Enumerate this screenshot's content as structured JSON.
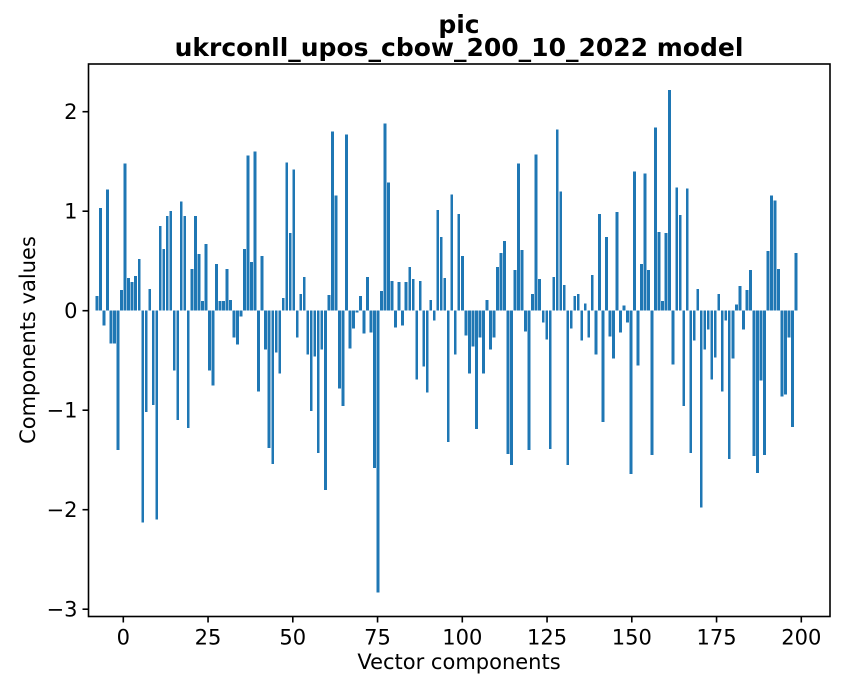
{
  "title": {
    "line1": "pic",
    "line2": "ukrconll_upos_cbow_200_10_2022 model"
  },
  "chart_data": {
    "type": "bar",
    "title": "pic\nukrconll_upos_cbow_200_10_2022 model",
    "xlabel": "Vector components",
    "ylabel": "Components values",
    "bar_color": "#1f77b4",
    "axis_color": "#000000",
    "background_color": "#ffffff",
    "xticks": [
      0,
      25,
      50,
      75,
      100,
      125,
      150,
      175,
      200
    ],
    "yticks": [
      2,
      1,
      0,
      -1,
      -2,
      -3
    ],
    "xlim": [
      -10,
      210
    ],
    "ylim": [
      -3.07,
      2.48
    ],
    "grid": false,
    "legend": null,
    "bar_width": 0.8,
    "x_start": 0,
    "n_components": 200,
    "values": [
      0.15,
      1.03,
      -0.15,
      1.22,
      -0.33,
      -0.33,
      -1.4,
      0.21,
      1.48,
      0.33,
      0.29,
      0.35,
      0.52,
      -2.13,
      -1.02,
      0.22,
      -0.95,
      -2.1,
      0.85,
      0.62,
      0.95,
      1.0,
      -0.6,
      -1.1,
      1.1,
      0.95,
      -1.18,
      0.42,
      0.95,
      0.57,
      0.1,
      0.67,
      -0.6,
      -0.75,
      0.47,
      0.1,
      0.1,
      0.42,
      0.11,
      -0.27,
      -0.34,
      -0.06,
      0.62,
      1.56,
      0.49,
      1.6,
      -0.81,
      0.55,
      -0.39,
      -1.38,
      -1.54,
      -0.42,
      -0.63,
      0.13,
      1.49,
      0.78,
      1.42,
      -0.27,
      0.17,
      0.34,
      -0.44,
      -1.01,
      -0.46,
      -1.43,
      -0.39,
      -1.8,
      0.16,
      1.8,
      1.16,
      -0.78,
      -0.96,
      1.77,
      -0.38,
      -0.18,
      -0.02,
      0.15,
      -0.23,
      0.34,
      -0.22,
      -1.58,
      -2.83,
      0.2,
      1.88,
      1.29,
      0.3,
      -0.17,
      0.29,
      -0.15,
      0.29,
      0.44,
      0.32,
      -0.69,
      0.3,
      -0.56,
      -0.82,
      0.11,
      -0.1,
      1.01,
      0.74,
      0.33,
      -1.32,
      1.17,
      -0.44,
      0.97,
      0.55,
      -0.25,
      -0.63,
      -0.36,
      -1.19,
      -0.27,
      -0.63,
      0.11,
      -0.39,
      -0.27,
      0.44,
      0.58,
      0.7,
      -1.44,
      -1.55,
      0.41,
      1.48,
      0.61,
      -0.21,
      -1.4,
      0.17,
      1.57,
      0.32,
      -0.12,
      -0.29,
      -1.39,
      0.34,
      1.82,
      1.2,
      0.26,
      -1.55,
      -0.18,
      0.15,
      0.17,
      -0.3,
      0.07,
      -0.27,
      0.36,
      -0.44,
      0.97,
      -1.12,
      0.74,
      -0.26,
      -0.48,
      0.99,
      -0.22,
      0.05,
      -0.12,
      -1.64,
      1.4,
      -0.55,
      0.47,
      1.38,
      0.41,
      -1.45,
      1.84,
      0.79,
      0.1,
      0.78,
      2.22,
      -0.54,
      1.24,
      0.96,
      -0.96,
      1.23,
      -1.43,
      -0.3,
      0.22,
      -1.98,
      -0.39,
      -0.19,
      -0.69,
      -0.47,
      0.17,
      -0.81,
      -0.1,
      -1.49,
      -0.48,
      0.06,
      0.25,
      -0.19,
      0.21,
      0.41,
      -1.46,
      -1.63,
      -0.7,
      -1.45,
      0.6,
      1.16,
      1.11,
      0.42,
      -0.86,
      -0.84,
      -0.27,
      -1.17,
      0.58
    ]
  }
}
